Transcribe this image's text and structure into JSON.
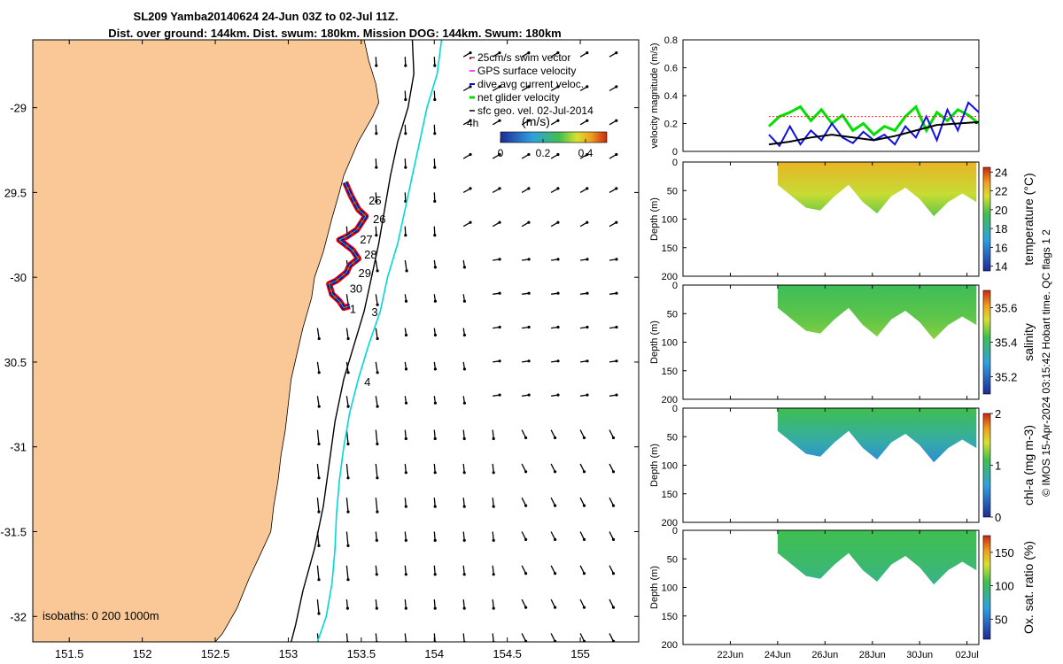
{
  "title": {
    "line1": "SL209 Yamba20140624 24-Jun 03Z to 02-Jul 11Z.",
    "line2": "Dist. over ground: 144km. Dist. swum: 180km. Mission DOG: 144km. Swum: 180km"
  },
  "credit": "© IMOS 15-Apr-2024 03:15:42 Hobart time. QC flags 1  2",
  "colors": {
    "land": "#FAC896",
    "track_red": "#E00000",
    "track_blue": "#0000E0",
    "iso_cyan": "#00D8D8",
    "net_green": "#00E000",
    "gps_magenta": "#FF00FF"
  },
  "chart_data": [
    {
      "type": "map",
      "xlim": [
        151.25,
        155.4
      ],
      "ylim": [
        -32.15,
        -28.6
      ],
      "x_ticks": [
        151.5,
        152,
        152.5,
        153,
        153.5,
        154,
        154.5,
        155
      ],
      "x_tick_labels": [
        "151.5",
        "152",
        "152.5",
        "153",
        "153.5",
        "154",
        "154.5",
        "155"
      ],
      "y_ticks": [
        -29,
        -29.5,
        -30,
        -30.5,
        -31,
        -31.5,
        -32
      ],
      "y_tick_labels": [
        "-29",
        "29.5",
        "-30",
        "30.5",
        "-31",
        "-31.5",
        "-32"
      ],
      "legend": {
        "position": "top-right",
        "entries": [
          "25cm/s swim vector",
          "GPS surface velocity",
          "dive avg current veloc.",
          "net glider velocity",
          "sfc geo. vel. 02-Jul-2014"
        ]
      },
      "colorbar": {
        "label": "(m/s)",
        "ticks": [
          "0",
          "0.2",
          "0.4"
        ],
        "range": [
          0,
          0.5
        ]
      },
      "isobaths_label": "isobaths: 0   200  1000m",
      "time_label": "4h",
      "track_day_labels": [
        {
          "text": "25",
          "lon": 153.55,
          "lat": -29.57
        },
        {
          "text": "26",
          "lon": 153.58,
          "lat": -29.68
        },
        {
          "text": "27",
          "lon": 153.49,
          "lat": -29.8
        },
        {
          "text": "28",
          "lon": 153.52,
          "lat": -29.89
        },
        {
          "text": "29",
          "lon": 153.48,
          "lat": -30.0
        },
        {
          "text": "30",
          "lon": 153.42,
          "lat": -30.09
        },
        {
          "text": "1",
          "lon": 153.42,
          "lat": -30.21
        },
        {
          "text": "3",
          "lon": 153.57,
          "lat": -30.23
        },
        {
          "text": "4",
          "lon": 153.52,
          "lat": -30.64
        }
      ],
      "coast": [
        [
          153.52,
          -28.6
        ],
        [
          153.55,
          -28.72
        ],
        [
          153.6,
          -28.86
        ],
        [
          153.62,
          -28.97
        ],
        [
          153.58,
          -29.05
        ],
        [
          153.48,
          -29.2
        ],
        [
          153.38,
          -29.4
        ],
        [
          153.35,
          -29.5
        ],
        [
          153.3,
          -29.65
        ],
        [
          153.24,
          -29.85
        ],
        [
          153.18,
          -30.0
        ],
        [
          153.16,
          -30.12
        ],
        [
          153.1,
          -30.3
        ],
        [
          153.06,
          -30.45
        ],
        [
          153.02,
          -30.6
        ],
        [
          153.0,
          -30.75
        ],
        [
          152.98,
          -30.9
        ],
        [
          152.95,
          -31.05
        ],
        [
          152.93,
          -31.2
        ],
        [
          152.9,
          -31.35
        ],
        [
          152.88,
          -31.5
        ],
        [
          152.8,
          -31.65
        ],
        [
          152.73,
          -31.78
        ],
        [
          152.65,
          -31.95
        ],
        [
          152.55,
          -32.1
        ],
        [
          152.5,
          -32.15
        ]
      ],
      "isobath_200m": [
        [
          153.85,
          -28.6
        ],
        [
          153.86,
          -28.8
        ],
        [
          153.82,
          -29.0
        ],
        [
          153.75,
          -29.2
        ],
        [
          153.7,
          -29.4
        ],
        [
          153.66,
          -29.6
        ],
        [
          153.62,
          -29.8
        ],
        [
          153.57,
          -30.0
        ],
        [
          153.52,
          -30.2
        ],
        [
          153.45,
          -30.4
        ],
        [
          153.38,
          -30.6
        ],
        [
          153.32,
          -30.85
        ],
        [
          153.28,
          -31.1
        ],
        [
          153.24,
          -31.35
        ],
        [
          153.18,
          -31.6
        ],
        [
          153.1,
          -31.85
        ],
        [
          153.05,
          -32.05
        ],
        [
          153.02,
          -32.15
        ]
      ],
      "isobath_1000m": [
        [
          154.05,
          -28.6
        ],
        [
          154.02,
          -28.8
        ],
        [
          153.95,
          -29.0
        ],
        [
          153.9,
          -29.2
        ],
        [
          153.85,
          -29.4
        ],
        [
          153.8,
          -29.6
        ],
        [
          153.75,
          -29.8
        ],
        [
          153.68,
          -30.0
        ],
        [
          153.63,
          -30.2
        ],
        [
          153.55,
          -30.4
        ],
        [
          153.48,
          -30.6
        ],
        [
          153.42,
          -30.8
        ],
        [
          153.38,
          -31.0
        ],
        [
          153.35,
          -31.2
        ],
        [
          153.33,
          -31.4
        ],
        [
          153.32,
          -31.6
        ],
        [
          153.3,
          -31.8
        ],
        [
          153.26,
          -32.0
        ],
        [
          153.2,
          -32.15
        ]
      ],
      "track": [
        [
          153.39,
          -29.44
        ],
        [
          153.43,
          -29.52
        ],
        [
          153.48,
          -29.6
        ],
        [
          153.53,
          -29.64
        ],
        [
          153.47,
          -29.72
        ],
        [
          153.4,
          -29.76
        ],
        [
          153.35,
          -29.78
        ],
        [
          153.44,
          -29.84
        ],
        [
          153.48,
          -29.89
        ],
        [
          153.42,
          -29.93
        ],
        [
          153.4,
          -29.97
        ],
        [
          153.33,
          -30.02
        ],
        [
          153.28,
          -30.04
        ],
        [
          153.3,
          -30.1
        ],
        [
          153.35,
          -30.14
        ],
        [
          153.38,
          -30.18
        ],
        [
          153.42,
          -30.17
        ]
      ]
    },
    {
      "type": "line",
      "ylabel": "velocity magnitude (m/s)",
      "ylim": [
        0,
        0.8
      ],
      "y_ticks": [
        "0",
        "0.2",
        "0.4",
        "0.6",
        "0.8"
      ],
      "series": [
        {
          "color": "green",
          "x": [
            0,
            0.05,
            0.1,
            0.15,
            0.2,
            0.25,
            0.3,
            0.35,
            0.4,
            0.45,
            0.5,
            0.55,
            0.6,
            0.65,
            0.7,
            0.75,
            0.8,
            0.85,
            0.9,
            0.95,
            1.0
          ],
          "values": [
            0.18,
            0.25,
            0.28,
            0.32,
            0.22,
            0.3,
            0.2,
            0.26,
            0.15,
            0.2,
            0.12,
            0.18,
            0.15,
            0.25,
            0.32,
            0.15,
            0.28,
            0.22,
            0.3,
            0.26,
            0.2
          ]
        },
        {
          "color": "blue",
          "x": [
            0,
            0.05,
            0.1,
            0.15,
            0.2,
            0.25,
            0.3,
            0.35,
            0.4,
            0.45,
            0.5,
            0.55,
            0.6,
            0.65,
            0.7,
            0.75,
            0.8,
            0.85,
            0.9,
            0.95,
            1.0
          ],
          "values": [
            0.12,
            0.04,
            0.18,
            0.05,
            0.15,
            0.08,
            0.2,
            0.1,
            0.06,
            0.14,
            0.08,
            0.12,
            0.05,
            0.18,
            0.1,
            0.25,
            0.08,
            0.3,
            0.15,
            0.35,
            0.28
          ]
        },
        {
          "color": "black",
          "x": [
            0,
            0.1,
            0.2,
            0.3,
            0.4,
            0.5,
            0.6,
            0.7,
            0.8,
            0.9,
            1.0
          ],
          "values": [
            0.05,
            0.07,
            0.1,
            0.12,
            0.1,
            0.08,
            0.11,
            0.15,
            0.19,
            0.2,
            0.21
          ]
        },
        {
          "color": "red",
          "x": [
            0,
            1.0
          ],
          "values": [
            0.25,
            0.25
          ]
        }
      ]
    },
    {
      "type": "heatmap",
      "ylabel": "Depth (m)",
      "colorbar_label": "temperature (°C)",
      "y_ticks": [
        "0",
        "50",
        "100",
        "150",
        "200"
      ],
      "colorbar_ticks": [
        "14",
        "16",
        "18",
        "20",
        "22",
        "24"
      ],
      "colorbar_range": [
        13.5,
        24.5
      ],
      "x_ticks": [
        "22Jun",
        "24Jun",
        "26Jun",
        "28Jun",
        "30Jun",
        "02Jul"
      ],
      "x_range_days": [
        20.0,
        32.5
      ],
      "data_day_start": 24.0,
      "data_day_end": 32.4,
      "profile_depth": [
        [
          24.0,
          40
        ],
        [
          24.6,
          60
        ],
        [
          25.2,
          80
        ],
        [
          25.8,
          85
        ],
        [
          26.4,
          60
        ],
        [
          27.0,
          40
        ],
        [
          27.6,
          70
        ],
        [
          28.2,
          90
        ],
        [
          28.8,
          60
        ],
        [
          29.4,
          45
        ],
        [
          30.0,
          65
        ],
        [
          30.6,
          95
        ],
        [
          31.2,
          70
        ],
        [
          31.8,
          55
        ],
        [
          32.4,
          70
        ]
      ],
      "color_stops": [
        [
          0.0,
          "#1E2A96"
        ],
        [
          0.3,
          "#2FA0E0"
        ],
        [
          0.55,
          "#3FBF4F"
        ],
        [
          0.72,
          "#D8E030"
        ],
        [
          0.85,
          "#F0A020"
        ],
        [
          1.0,
          "#C82810"
        ]
      ],
      "value_shallow": 22.4,
      "value_deep": 20.0
    },
    {
      "type": "heatmap",
      "ylabel": "Depth (m)",
      "colorbar_label": "salinity",
      "y_ticks": [
        "0",
        "50",
        "100",
        "150",
        "200"
      ],
      "colorbar_ticks": [
        "35.2",
        "35.4",
        "35.6"
      ],
      "colorbar_range": [
        35.1,
        35.7
      ],
      "x_ticks": [
        "22Jun",
        "24Jun",
        "26Jun",
        "28Jun",
        "30Jun",
        "02Jul"
      ],
      "x_range_days": [
        20.0,
        32.5
      ],
      "data_day_start": 24.0,
      "data_day_end": 32.4,
      "profile_depth": [
        [
          24.0,
          40
        ],
        [
          24.6,
          60
        ],
        [
          25.2,
          80
        ],
        [
          25.8,
          85
        ],
        [
          26.4,
          60
        ],
        [
          27.0,
          40
        ],
        [
          27.6,
          70
        ],
        [
          28.2,
          90
        ],
        [
          28.8,
          60
        ],
        [
          29.4,
          45
        ],
        [
          30.0,
          65
        ],
        [
          30.6,
          95
        ],
        [
          31.2,
          70
        ],
        [
          31.8,
          55
        ],
        [
          32.4,
          70
        ]
      ],
      "color_stops": [
        [
          0.0,
          "#1E2A96"
        ],
        [
          0.3,
          "#2FA0E0"
        ],
        [
          0.55,
          "#3FBF4F"
        ],
        [
          0.72,
          "#D8E030"
        ],
        [
          0.85,
          "#F0A020"
        ],
        [
          1.0,
          "#C82810"
        ]
      ],
      "value_shallow": 35.42,
      "value_deep": 35.48
    },
    {
      "type": "heatmap",
      "ylabel": "Depth (m)",
      "colorbar_label": "chl-a (mg m-3)",
      "y_ticks": [
        "0",
        "50",
        "100",
        "150",
        "200"
      ],
      "colorbar_ticks": [
        "0",
        "1",
        "2"
      ],
      "colorbar_range": [
        0,
        2
      ],
      "x_ticks": [
        "22Jun",
        "24Jun",
        "26Jun",
        "28Jun",
        "30Jun",
        "02Jul"
      ],
      "x_range_days": [
        20.0,
        32.5
      ],
      "data_day_start": 24.0,
      "data_day_end": 32.4,
      "profile_depth": [
        [
          24.0,
          40
        ],
        [
          24.6,
          60
        ],
        [
          25.2,
          80
        ],
        [
          25.8,
          85
        ],
        [
          26.4,
          60
        ],
        [
          27.0,
          40
        ],
        [
          27.6,
          70
        ],
        [
          28.2,
          90
        ],
        [
          28.8,
          60
        ],
        [
          29.4,
          45
        ],
        [
          30.0,
          65
        ],
        [
          30.6,
          95
        ],
        [
          31.2,
          70
        ],
        [
          31.8,
          55
        ],
        [
          32.4,
          70
        ]
      ],
      "color_stops": [
        [
          0.0,
          "#1E2A96"
        ],
        [
          0.3,
          "#2FA0E0"
        ],
        [
          0.55,
          "#3FBF4F"
        ],
        [
          0.72,
          "#D8E030"
        ],
        [
          0.85,
          "#F0A020"
        ],
        [
          1.0,
          "#C82810"
        ]
      ],
      "value_shallow": 1.1,
      "value_deep": 0.5
    },
    {
      "type": "heatmap",
      "ylabel": "Depth (m)",
      "colorbar_label": "Ox. sat. ratio (%)",
      "y_ticks": [
        "0",
        "50",
        "100",
        "150",
        "200"
      ],
      "colorbar_ticks": [
        "50",
        "100",
        "150"
      ],
      "colorbar_range": [
        20,
        175
      ],
      "x_ticks": [
        "22Jun",
        "24Jun",
        "26Jun",
        "28Jun",
        "30Jun",
        "02Jul"
      ],
      "x_range_days": [
        20.0,
        32.5
      ],
      "data_day_start": 24.0,
      "data_day_end": 32.4,
      "profile_depth": [
        [
          24.0,
          40
        ],
        [
          24.6,
          60
        ],
        [
          25.2,
          80
        ],
        [
          25.8,
          85
        ],
        [
          26.4,
          60
        ],
        [
          27.0,
          40
        ],
        [
          27.6,
          70
        ],
        [
          28.2,
          90
        ],
        [
          28.8,
          60
        ],
        [
          29.4,
          45
        ],
        [
          30.0,
          65
        ],
        [
          30.6,
          95
        ],
        [
          31.2,
          70
        ],
        [
          31.8,
          55
        ],
        [
          32.4,
          70
        ]
      ],
      "color_stops": [
        [
          0.0,
          "#1E2A96"
        ],
        [
          0.3,
          "#2FA0E0"
        ],
        [
          0.55,
          "#3FBF4F"
        ],
        [
          0.72,
          "#D8E030"
        ],
        [
          0.85,
          "#F0A020"
        ],
        [
          1.0,
          "#C82810"
        ]
      ],
      "value_shallow": 105,
      "value_deep": 90
    }
  ]
}
